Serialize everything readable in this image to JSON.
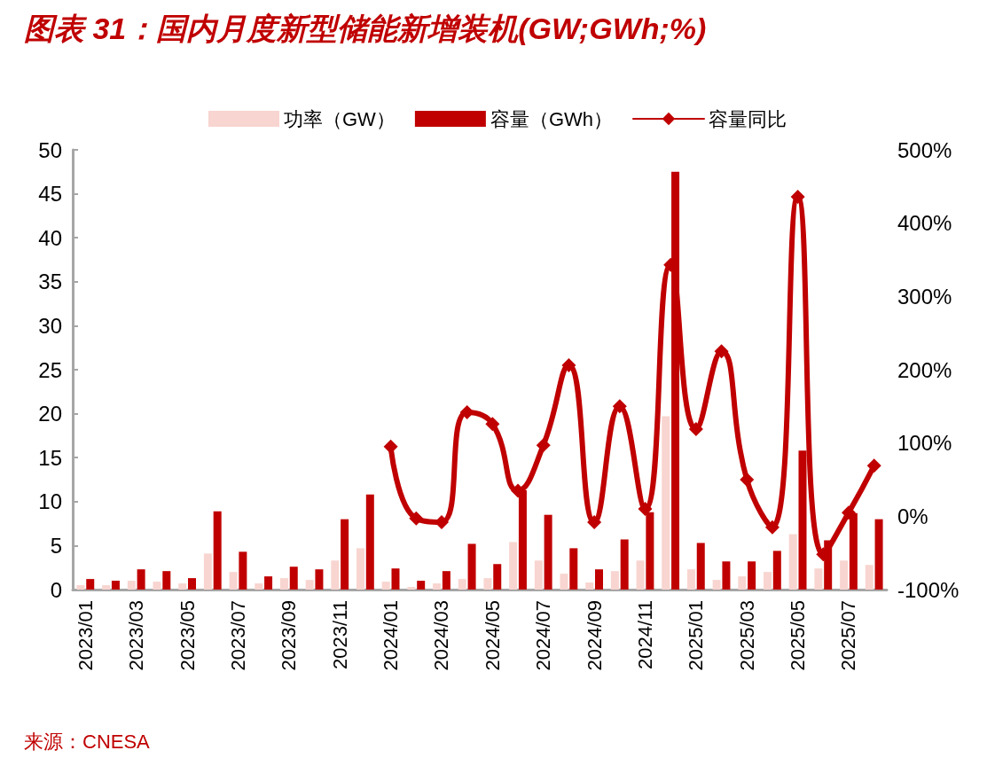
{
  "chart_data": {
    "type": "bar",
    "title": "图表 31：国内月度新型储能新增装机(GW;GWh;%)",
    "categories": [
      "2023/01",
      null,
      "2023/03",
      null,
      "2023/05",
      null,
      "2023/07",
      null,
      "2023/09",
      null,
      "2023/11",
      null,
      "2024/01",
      null,
      "2024/03",
      null,
      "2024/05",
      null,
      "2024/07",
      null,
      "2024/09",
      null,
      "2024/11",
      null,
      "2025/01",
      null,
      "2025/03",
      null,
      "2025/05",
      null,
      "2025/07",
      null
    ],
    "series": [
      {
        "name": "功率（GW）",
        "color": "#f8d5d0",
        "values": [
          0.5,
          0.5,
          1.0,
          0.9,
          0.7,
          4.1,
          2.0,
          0.7,
          1.3,
          1.1,
          3.3,
          4.7,
          0.9,
          0.3,
          0.7,
          1.2,
          1.3,
          5.4,
          3.3,
          1.8,
          0.8,
          2.1,
          3.3,
          19.7,
          2.3,
          1.1,
          1.5,
          2.0,
          6.3,
          2.4,
          3.3,
          2.8
        ]
      },
      {
        "name": "容量（GWh）",
        "color": "#c00000",
        "values": [
          1.2,
          1.0,
          2.3,
          2.1,
          1.3,
          8.9,
          4.3,
          1.5,
          2.6,
          2.3,
          8.0,
          10.8,
          2.4,
          1.0,
          2.1,
          5.2,
          2.9,
          11.3,
          8.5,
          4.7,
          2.3,
          5.7,
          8.8,
          47.5,
          5.3,
          3.2,
          3.2,
          4.4,
          15.8,
          5.6,
          8.7,
          8.0
        ]
      },
      {
        "name": "容量同比",
        "type": "line",
        "axis": "y2",
        "color": "#c00000",
        "values": [
          null,
          null,
          null,
          null,
          null,
          null,
          null,
          null,
          null,
          null,
          null,
          null,
          95,
          -3,
          -8,
          142,
          126,
          35,
          97,
          206,
          -8,
          150,
          10,
          343,
          119,
          225,
          50,
          -15,
          436,
          -52,
          5,
          69
        ]
      }
    ],
    "ylim": [
      0,
      50
    ],
    "yticks": [
      0,
      5,
      10,
      15,
      20,
      25,
      30,
      35,
      40,
      45,
      50
    ],
    "y2lim": [
      -100,
      500
    ],
    "y2ticks": [
      {
        "value": -100,
        "label": "-100%"
      },
      {
        "value": 0,
        "label": "0%"
      },
      {
        "value": 100,
        "label": "100%"
      },
      {
        "value": 200,
        "label": "200%"
      },
      {
        "value": 300,
        "label": "300%"
      },
      {
        "value": 400,
        "label": "400%"
      },
      {
        "value": 500,
        "label": "500%"
      }
    ],
    "marker": "diamond",
    "legend": "top",
    "grid": false,
    "annotations": [
      "来源：CNESA"
    ]
  }
}
